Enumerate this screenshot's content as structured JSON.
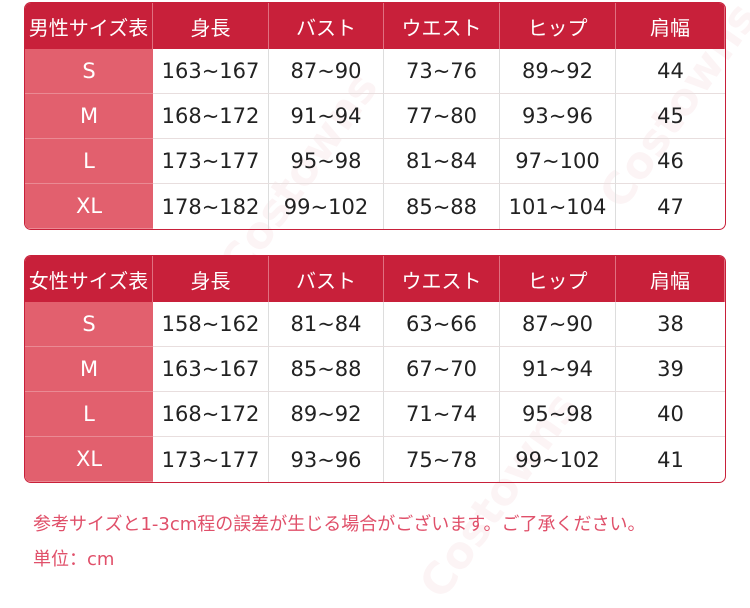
{
  "tables": [
    {
      "title": "男性サイズ表",
      "headers": [
        "身長",
        "バスト",
        "ウエスト",
        "ヒップ",
        "肩幅"
      ],
      "rows": [
        [
          "S",
          "163~167",
          "87~90",
          "73~76",
          "89~92",
          "44"
        ],
        [
          "M",
          "168~172",
          "91~94",
          "77~80",
          "93~96",
          "45"
        ],
        [
          "L",
          "173~177",
          "95~98",
          "81~84",
          "97~100",
          "46"
        ],
        [
          "XL",
          "178~182",
          "99~102",
          "85~88",
          "101~104",
          "47"
        ]
      ]
    },
    {
      "title": "女性サイズ表",
      "headers": [
        "身長",
        "バスト",
        "ウエスト",
        "ヒップ",
        "肩幅"
      ],
      "rows": [
        [
          "S",
          "158~162",
          "81~84",
          "63~66",
          "87~90",
          "38"
        ],
        [
          "M",
          "163~167",
          "85~88",
          "67~70",
          "91~94",
          "39"
        ],
        [
          "L",
          "168~172",
          "89~92",
          "71~74",
          "95~98",
          "40"
        ],
        [
          "XL",
          "173~177",
          "93~96",
          "75~78",
          "99~102",
          "41"
        ]
      ]
    }
  ],
  "notes": {
    "disclaimer": "参考サイズと1-3cm程の誤差が生じる場合がございます。ご了承ください。",
    "unit": "単位：cm"
  },
  "watermark": "Costowns",
  "colors": {
    "header": "#c8203a",
    "size_column": "#e2606e",
    "note_text": "#e0506a"
  }
}
